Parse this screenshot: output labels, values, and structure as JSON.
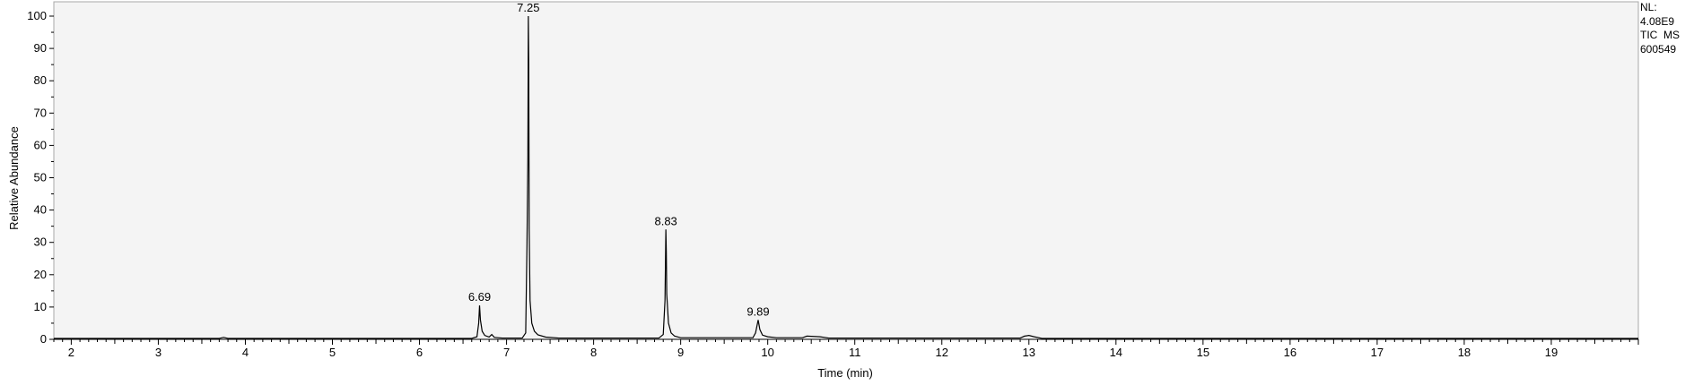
{
  "chart_data": {
    "type": "line",
    "title": "",
    "xlabel": "Time (min)",
    "ylabel": "Relative Abundance",
    "xlim": [
      1.8,
      20.0
    ],
    "ylim": [
      0,
      100
    ],
    "x_ticks": [
      "2",
      "3",
      "4",
      "5",
      "6",
      "7",
      "8",
      "9",
      "10",
      "11",
      "12",
      "13",
      "14",
      "15",
      "16",
      "17",
      "18",
      "19"
    ],
    "y_ticks": [
      "0",
      "10",
      "20",
      "30",
      "40",
      "50",
      "60",
      "70",
      "80",
      "90",
      "100"
    ],
    "grid": false,
    "series": [
      {
        "values_desc": "TIC chromatogram trace",
        "points": [
          [
            1.8,
            0.3
          ],
          [
            3.7,
            0.3
          ],
          [
            3.75,
            0.6
          ],
          [
            3.8,
            0.3
          ],
          [
            6.6,
            0.3
          ],
          [
            6.66,
            0.8
          ],
          [
            6.68,
            5
          ],
          [
            6.69,
            10.5
          ],
          [
            6.7,
            6
          ],
          [
            6.72,
            2.5
          ],
          [
            6.75,
            1.2
          ],
          [
            6.8,
            0.7
          ],
          [
            6.83,
            1.5
          ],
          [
            6.86,
            0.6
          ],
          [
            6.95,
            0.4
          ],
          [
            7.18,
            0.4
          ],
          [
            7.22,
            2
          ],
          [
            7.235,
            30
          ],
          [
            7.245,
            57
          ],
          [
            7.25,
            100
          ],
          [
            7.255,
            85
          ],
          [
            7.26,
            34
          ],
          [
            7.27,
            12
          ],
          [
            7.29,
            5
          ],
          [
            7.32,
            2.5
          ],
          [
            7.36,
            1.4
          ],
          [
            7.45,
            0.7
          ],
          [
            7.6,
            0.4
          ],
          [
            8.75,
            0.4
          ],
          [
            8.8,
            1.5
          ],
          [
            8.82,
            12
          ],
          [
            8.83,
            34
          ],
          [
            8.835,
            27
          ],
          [
            8.84,
            14
          ],
          [
            8.86,
            5
          ],
          [
            8.89,
            2
          ],
          [
            8.93,
            1
          ],
          [
            9.0,
            0.5
          ],
          [
            9.83,
            0.5
          ],
          [
            9.86,
            2
          ],
          [
            9.89,
            6
          ],
          [
            9.91,
            3
          ],
          [
            9.94,
            1.3
          ],
          [
            10.0,
            0.8
          ],
          [
            10.1,
            0.5
          ],
          [
            10.4,
            0.5
          ],
          [
            10.45,
            1.0
          ],
          [
            10.6,
            0.8
          ],
          [
            10.7,
            0.4
          ],
          [
            12.9,
            0.4
          ],
          [
            12.95,
            1.0
          ],
          [
            13.0,
            1.2
          ],
          [
            13.06,
            0.8
          ],
          [
            13.15,
            0.3
          ],
          [
            20.0,
            0.3
          ]
        ]
      }
    ],
    "peak_labels": [
      {
        "x": 6.69,
        "y": 10.5,
        "text": "6.69"
      },
      {
        "x": 7.25,
        "y": 100,
        "text": "7.25"
      },
      {
        "x": 8.83,
        "y": 34,
        "text": "8.83"
      },
      {
        "x": 9.89,
        "y": 6,
        "text": "9.89"
      }
    ]
  },
  "info": {
    "nl_label": "NL:",
    "nl_value": "4.08E9",
    "trace": "TIC  MS",
    "sample": "600549"
  }
}
